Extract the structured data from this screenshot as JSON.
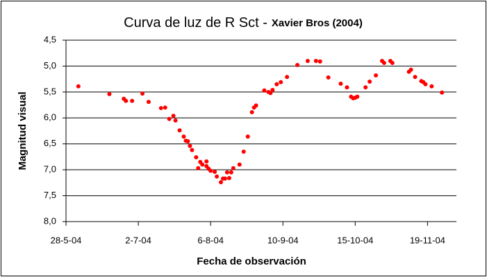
{
  "chart_data": {
    "type": "scatter",
    "title": "Curva de luz de R Sct -",
    "subtitle": "Xavier Bros (2004)",
    "x_label": "Fecha de observación",
    "y_label": "Magnitud visual",
    "color": "#ff0000",
    "y_inverted": true,
    "grid": true,
    "xlim": [
      "2004-05-28",
      "2004-12-03"
    ],
    "xticks": [
      {
        "value": "2004-05-28",
        "label": "28-5-04"
      },
      {
        "value": "2004-07-02",
        "label": "2-7-04"
      },
      {
        "value": "2004-08-06",
        "label": "6-8-04"
      },
      {
        "value": "2004-09-10",
        "label": "10-9-04"
      },
      {
        "value": "2004-10-15",
        "label": "15-10-04"
      },
      {
        "value": "2004-11-19",
        "label": "19-11-04"
      }
    ],
    "ylim": [
      4.5,
      8.0
    ],
    "yticks": [
      {
        "value": 4.5,
        "label": "4,5"
      },
      {
        "value": 5.0,
        "label": "5,0"
      },
      {
        "value": 5.5,
        "label": "5,5"
      },
      {
        "value": 6.0,
        "label": "6,0"
      },
      {
        "value": 6.5,
        "label": "6,5"
      },
      {
        "value": 7.0,
        "label": "7,0"
      },
      {
        "value": 7.5,
        "label": "7,5"
      },
      {
        "value": 8.0,
        "label": "8,0"
      }
    ],
    "x": [
      "2004-06-03",
      "2004-06-18",
      "2004-06-25",
      "2004-06-26",
      "2004-06-29",
      "2004-07-04",
      "2004-07-07",
      "2004-07-13",
      "2004-07-15",
      "2004-07-17",
      "2004-07-19",
      "2004-07-20",
      "2004-07-22",
      "2004-07-24",
      "2004-07-25",
      "2004-07-26",
      "2004-07-27",
      "2004-07-28",
      "2004-07-30",
      "2004-07-31",
      "2004-08-01",
      "2004-08-02",
      "2004-08-04",
      "2004-08-04",
      "2004-08-05",
      "2004-08-06",
      "2004-08-08",
      "2004-08-09",
      "2004-08-11",
      "2004-08-12",
      "2004-08-13",
      "2004-08-14",
      "2004-08-15",
      "2004-08-16",
      "2004-08-17",
      "2004-08-20",
      "2004-08-22",
      "2004-08-24",
      "2004-08-26",
      "2004-08-27",
      "2004-08-28",
      "2004-09-01",
      "2004-09-03",
      "2004-09-04",
      "2004-09-05",
      "2004-09-07",
      "2004-09-09",
      "2004-09-12",
      "2004-09-17",
      "2004-09-22",
      "2004-09-26",
      "2004-09-28",
      "2004-10-02",
      "2004-10-08",
      "2004-10-11",
      "2004-10-13",
      "2004-10-14",
      "2004-10-15",
      "2004-10-16",
      "2004-10-20",
      "2004-10-22",
      "2004-10-25",
      "2004-10-28",
      "2004-10-29",
      "2004-11-01",
      "2004-11-02",
      "2004-11-10",
      "2004-11-11",
      "2004-11-13",
      "2004-11-16",
      "2004-11-17",
      "2004-11-18",
      "2004-11-21",
      "2004-11-26"
    ],
    "values": [
      5.39,
      5.54,
      5.63,
      5.67,
      5.67,
      5.53,
      5.69,
      5.81,
      5.8,
      6.02,
      5.96,
      6.05,
      6.24,
      6.36,
      6.44,
      6.45,
      6.54,
      6.62,
      6.76,
      6.97,
      6.85,
      6.9,
      6.84,
      6.93,
      6.98,
      7.02,
      7.04,
      7.13,
      7.24,
      7.17,
      7.17,
      7.05,
      7.16,
      7.05,
      6.97,
      6.9,
      6.65,
      6.36,
      5.89,
      5.8,
      5.76,
      5.47,
      5.5,
      5.52,
      5.46,
      5.35,
      5.31,
      5.21,
      4.98,
      4.9,
      4.9,
      4.91,
      5.22,
      5.34,
      5.41,
      5.59,
      5.62,
      5.61,
      5.59,
      5.41,
      5.3,
      5.18,
      4.9,
      4.94,
      4.9,
      4.94,
      5.11,
      5.07,
      5.21,
      5.29,
      5.31,
      5.35,
      5.39,
      5.51
    ]
  }
}
